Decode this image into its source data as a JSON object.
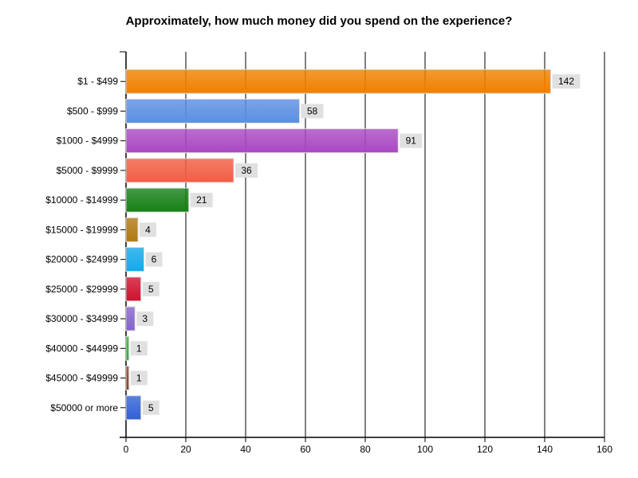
{
  "chart_data": {
    "type": "bar",
    "orientation": "horizontal",
    "title": "Approximately, how much money did you spend on the experience?",
    "xlabel": "",
    "ylabel": "",
    "categories": [
      "$1 - $499",
      "$500 - $999",
      "$1000 - $4999",
      "$5000 - $9999",
      "$10000 - $14999",
      "$15000 - $19999",
      "$20000 - $24999",
      "$25000 - $29999",
      "$30000 - $34999",
      "$40000 - $44999",
      "$45000 - $49999",
      "$50000 or more"
    ],
    "values": [
      142,
      58,
      91,
      36,
      21,
      4,
      6,
      5,
      3,
      1,
      1,
      5
    ],
    "colors": [
      "#f08000",
      "#5b8ee2",
      "#aa48c4",
      "#f25c42",
      "#158015",
      "#b07810",
      "#12a8ea",
      "#d0102e",
      "#8462cc",
      "#2cb02c",
      "#8a4020",
      "#3260d6"
    ],
    "xlim": [
      0,
      160
    ],
    "xticks": [
      0,
      20,
      40,
      60,
      80,
      100,
      120,
      140,
      160
    ],
    "grid": true,
    "data_labels": true,
    "legend": "none"
  }
}
